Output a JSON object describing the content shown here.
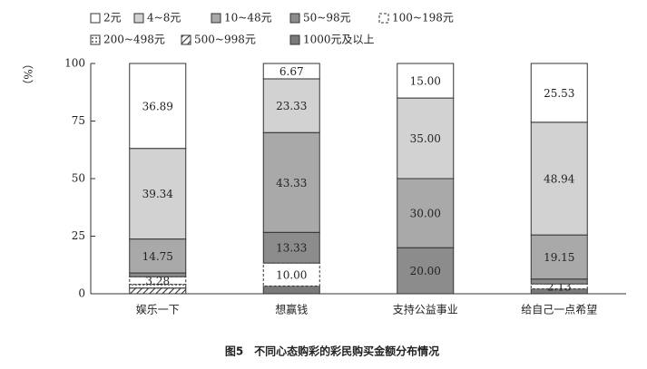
{
  "chart_data": {
    "type": "stacked_bar",
    "y_label": "（%）",
    "caption": "图5　不同心态购彩的彩民购买金额分布情况",
    "categories": [
      "娱乐一下",
      "想赢钱",
      "支持公益事业",
      "给自己一点希望"
    ],
    "ylim": [
      0,
      100
    ],
    "yticks": [
      0,
      25,
      50,
      75,
      100
    ],
    "series": [
      {
        "name": "2元",
        "color": "#ffffff",
        "pattern": "solid",
        "values": [
          36.89,
          6.67,
          15.0,
          25.53
        ],
        "value_labels": [
          "36.89",
          "6.67",
          "15.00",
          "25.53"
        ]
      },
      {
        "name": "4~8元",
        "color": "#d2d2d2",
        "pattern": "solid",
        "values": [
          39.34,
          23.33,
          35.0,
          48.94
        ],
        "value_labels": [
          "39.34",
          "23.33",
          "35.00",
          "48.94"
        ]
      },
      {
        "name": "10~48元",
        "color": "#a9a9a9",
        "pattern": "solid",
        "values": [
          14.75,
          43.33,
          30.0,
          19.15
        ],
        "value_labels": [
          "14.75",
          "43.33",
          "30.00",
          "19.15"
        ]
      },
      {
        "name": "50~98元",
        "color": "#8c8c8c",
        "pattern": "solid",
        "values": [
          1.64,
          13.33,
          20.0,
          2.13
        ],
        "value_labels": [
          null,
          "13.33",
          "20.00",
          null
        ]
      },
      {
        "name": "100~198元",
        "color": "#ffffff",
        "pattern": "dashed",
        "values": [
          3.28,
          10.0,
          0,
          2.13
        ],
        "value_labels": [
          "3.28",
          "10.00",
          null,
          "2.13"
        ]
      },
      {
        "name": "200~498元",
        "color": "#ffffff",
        "pattern": "dots",
        "values": [
          1.64,
          0,
          0,
          0
        ],
        "value_labels": [
          null,
          null,
          null,
          null
        ]
      },
      {
        "name": "500~998元",
        "color": "#ffffff",
        "pattern": "hatch",
        "values": [
          2.46,
          0,
          0,
          0
        ],
        "value_labels": [
          null,
          null,
          null,
          null
        ]
      },
      {
        "name": "1000元及以上",
        "color": "#7a7a7a",
        "pattern": "solid",
        "values": [
          0,
          3.33,
          0,
          2.13
        ],
        "value_labels": [
          null,
          null,
          null,
          null
        ]
      }
    ]
  }
}
